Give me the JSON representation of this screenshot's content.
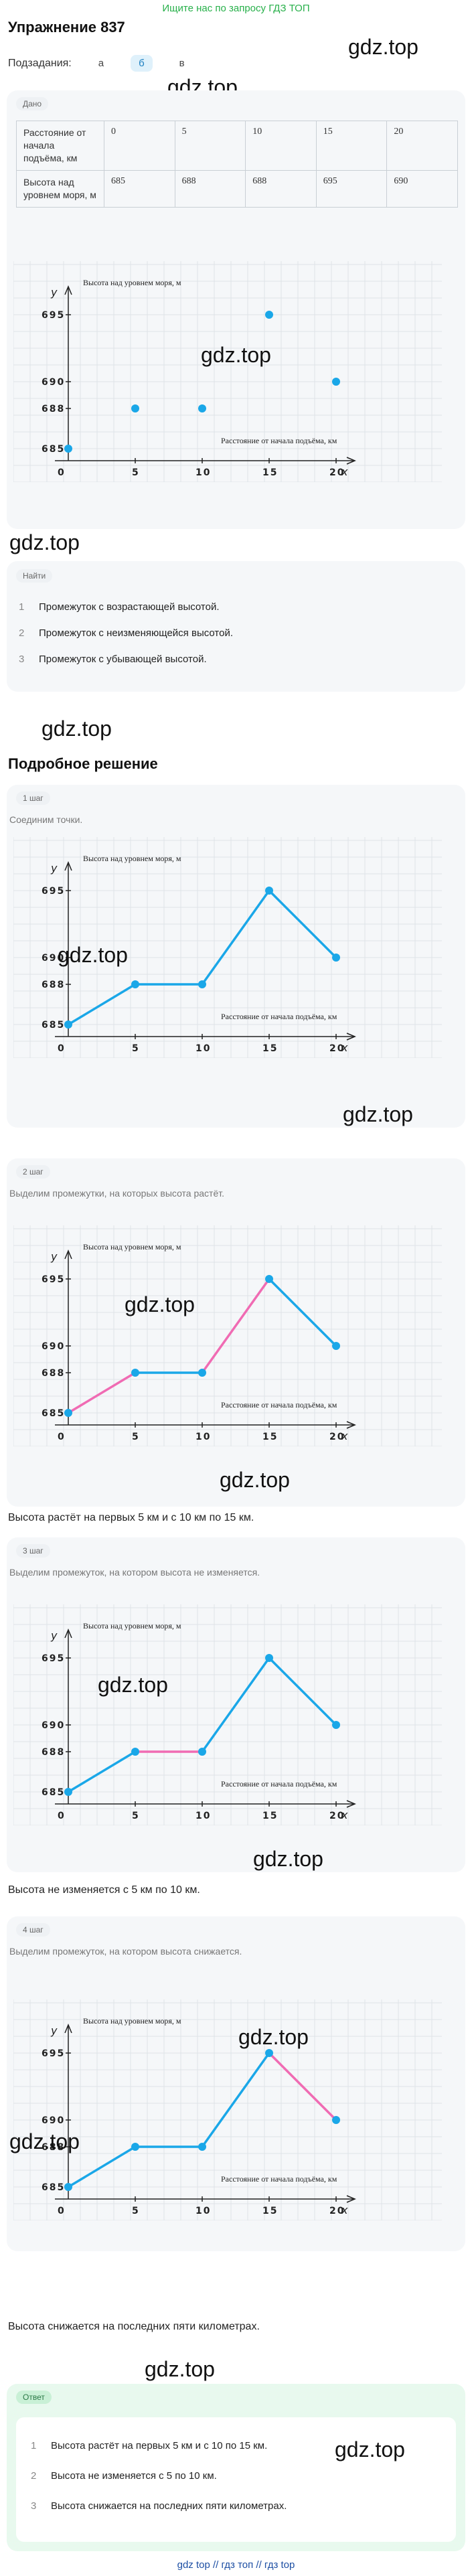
{
  "banner": "Ищите нас по запросу ГДЗ ТОП",
  "title": "Упражнение 837",
  "subtasks": {
    "label": "Подзадания:",
    "tabs": [
      "а",
      "б",
      "в"
    ],
    "active": 1
  },
  "watermark": "gdz.top",
  "given": {
    "chip": "Дано",
    "rows": [
      {
        "label": "Расстояние от начала подъёма, км",
        "values": [
          "0",
          "5",
          "10",
          "15",
          "20"
        ]
      },
      {
        "label": "Высота над уровнем моря, м",
        "values": [
          "685",
          "688",
          "688",
          "695",
          "690"
        ]
      }
    ]
  },
  "chart_data": [
    {
      "type": "scatter",
      "title": "",
      "ylabel_text": "Высота над уровнем моря, м",
      "xlabel_text": "Расстояние от начала подъёма, км",
      "y_axis_letter": "y",
      "x_axis_letter": "x",
      "origin_label": "0",
      "x": [
        0,
        5,
        10,
        15,
        20
      ],
      "y": [
        685,
        688,
        688,
        695,
        690
      ],
      "x_ticks": [
        "5",
        "10",
        "15",
        "20"
      ],
      "y_ticks": [
        "685",
        "688",
        "690",
        "695"
      ]
    }
  ],
  "find": {
    "chip": "Найти",
    "items": [
      "Промежуток с возрастающей высотой.",
      "Промежуток с неизменяющейся высотой.",
      "Промежуток с убывающей высотой."
    ]
  },
  "solution": {
    "title": "Подробное решение",
    "steps": [
      {
        "chip": "1 шаг",
        "text": "Соединим точки.",
        "highlight": "none"
      },
      {
        "chip": "2 шаг",
        "text": "Выделим промежутки, на которых высота растёт.",
        "highlight": "up",
        "after": "Высота растёт на первых 5 км и с 10 км по 15 км."
      },
      {
        "chip": "3 шаг",
        "text": "Выделим промежуток, на котором высота не изменяется.",
        "highlight": "flat",
        "after": "Высота не изменяется с 5 км по 10 км."
      },
      {
        "chip": "4 шаг",
        "text": "Выделим промежуток, на котором высота снижается.",
        "highlight": "down",
        "after": "Высота снижается на последних пяти километрах."
      }
    ]
  },
  "answer": {
    "chip": "Ответ",
    "items": [
      "Высота растёт на первых 5 км и с 10 по 15 км.",
      "Высота не изменяется с 5 по 10 км.",
      "Высота снижается на последних пяти километрах."
    ]
  },
  "footer": "gdz top // гдз топ // гдз top",
  "colors": {
    "line": "#1aa7e8",
    "highlight": "#f06bb3",
    "grid": "#dfe3e7",
    "banner": "#27b04a"
  }
}
